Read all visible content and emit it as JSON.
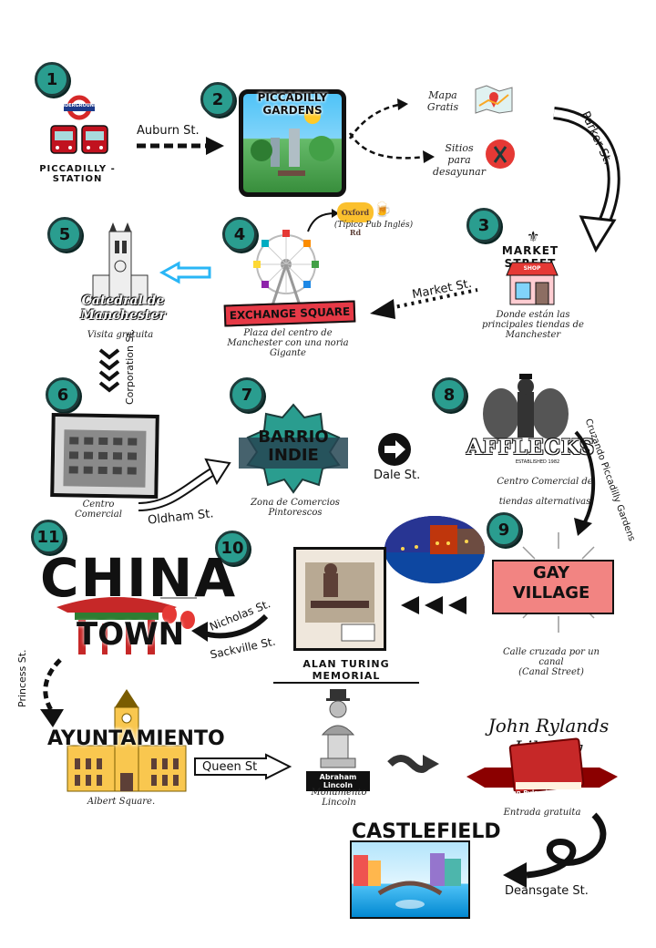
{
  "stops": {
    "s1": {
      "number": "1",
      "label": "PICCADILLY - STATION",
      "sign": "UNDERGROUND"
    },
    "s2": {
      "number": "2",
      "label": "PICCADILLY GARDENS"
    },
    "s3": {
      "number": "3",
      "label": "MARKET STREET",
      "shop": "SHOP",
      "desc": "Donde están las principales tiendas de Manchester"
    },
    "s4": {
      "number": "4",
      "label": "EXCHANGE SQUARE",
      "desc": "Plaza del centro de Manchester con una noria Gigante",
      "pub_logo": "Oxford Rd",
      "pub": "(Típico Pub Inglés)"
    },
    "s5": {
      "number": "5",
      "label": "Catedral de Manchester",
      "desc": "Visita gratuita"
    },
    "s6": {
      "number": "6",
      "desc": "Centro Comercial"
    },
    "s7": {
      "number": "7",
      "label_line1": "BARRIO",
      "label_line2": "INDIE",
      "desc": "Zona de Comercios Pintorescos"
    },
    "s8": {
      "number": "8",
      "label": "AFFLECKS",
      "est": "ESTABLISHED 1982",
      "desc": "Centro Comercial de tiendas alternativas"
    },
    "s9": {
      "number": "9",
      "label_line1": "GAY",
      "label_line2": "VILLAGE",
      "desc": "Calle cruzada por un canal",
      "desc2": "(Canal Street)"
    },
    "s10": {
      "number": "10",
      "label": "ALAN TURING MEMORIAL"
    },
    "s11": {
      "number": "11",
      "label_line1": "CHINA",
      "label_line2": "TOWN"
    },
    "ayuntamiento": {
      "label": "AYUNTAMIENTO",
      "desc": "Albert Square."
    },
    "lincoln": {
      "plaque": "Abraham Lincoln",
      "desc": "Monumento Lincoln"
    },
    "rylands": {
      "label": "John Rylands Library",
      "banner": "John Rylands Library",
      "desc": "Entrada gratuita"
    },
    "castlefield": {
      "label": "CASTLEFIELD"
    }
  },
  "side_notes": {
    "map": "Mapa Gratis",
    "breakfast": "Sitios para desayunar"
  },
  "streets": {
    "auburn": "Auburn St.",
    "parker": "Parker St.",
    "market": "Market St.",
    "corporation": "Corporation St.",
    "oldham": "Oldham St.",
    "dale": "Dale St.",
    "cruzando": "Cruzando Piccadilly Gardens",
    "nicholas": "Nicholas St.",
    "sackville": "Sackville St.",
    "princess": "Princess St.",
    "queen": "Queen St",
    "deansgate": "Deansgate St."
  },
  "colors": {
    "teal": "#2a9d8f",
    "red": "#e63946",
    "sky": "#4fc3f7"
  }
}
